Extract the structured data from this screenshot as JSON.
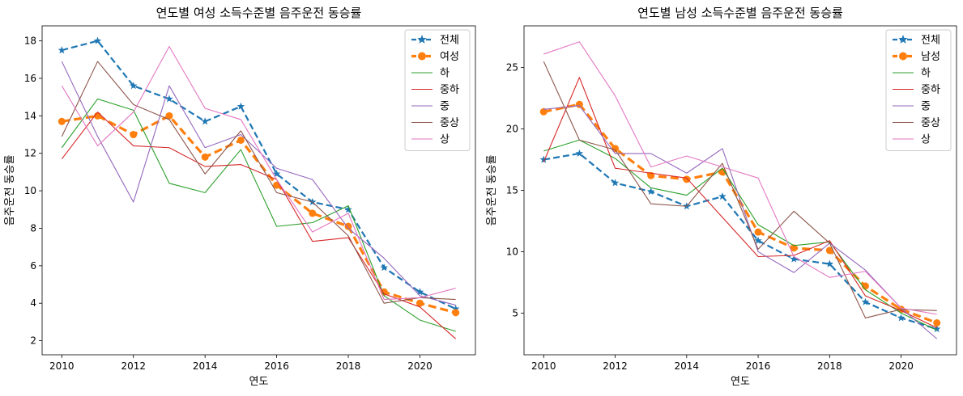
{
  "chart_data": [
    {
      "type": "line",
      "title": "연도별 여성 소득수준별 음주운전 동승률",
      "xlabel": "연도",
      "ylabel": "음주운전 동승률",
      "x": [
        2010,
        2011,
        2012,
        2013,
        2014,
        2015,
        2016,
        2017,
        2018,
        2019,
        2020,
        2021
      ],
      "xlim": [
        2009.45,
        2021.55
      ],
      "ylim": [
        1.25,
        18.8
      ],
      "xticks": [
        2010,
        2012,
        2014,
        2016,
        2018,
        2020
      ],
      "yticks": [
        2,
        4,
        6,
        8,
        10,
        12,
        14,
        16,
        18
      ],
      "grid": false,
      "legend_position": "upper right",
      "series": [
        {
          "name": "전체",
          "color": "#1f77b4",
          "style": "dashed",
          "marker": "star",
          "width": 2.2,
          "values": [
            17.5,
            18.0,
            15.6,
            14.9,
            13.7,
            14.5,
            10.9,
            9.4,
            9.0,
            5.9,
            4.6,
            3.7
          ]
        },
        {
          "name": "여성",
          "color": "#ff7f0e",
          "style": "dashed",
          "marker": "circle",
          "width": 3.2,
          "values": [
            13.7,
            14.0,
            13.0,
            14.0,
            11.8,
            12.7,
            10.3,
            8.8,
            8.1,
            4.6,
            4.0,
            3.5
          ]
        },
        {
          "name": "하",
          "color": "#2ca02c",
          "style": "solid",
          "marker": "none",
          "width": 1.1,
          "values": [
            12.3,
            14.9,
            14.3,
            10.4,
            9.9,
            12.2,
            8.1,
            8.3,
            9.2,
            4.4,
            3.1,
            2.5
          ]
        },
        {
          "name": "중하",
          "color": "#d62728",
          "style": "solid",
          "marker": "none",
          "width": 1.1,
          "values": [
            11.7,
            14.2,
            12.4,
            12.3,
            11.3,
            11.4,
            10.6,
            7.3,
            7.5,
            4.5,
            3.8,
            2.1
          ]
        },
        {
          "name": "중",
          "color": "#9467bd",
          "style": "solid",
          "marker": "none",
          "width": 1.1,
          "values": [
            16.9,
            12.9,
            9.4,
            15.6,
            12.3,
            13.0,
            11.2,
            10.6,
            8.0,
            6.4,
            4.4,
            3.9
          ]
        },
        {
          "name": "중상",
          "color": "#8c564b",
          "style": "solid",
          "marker": "none",
          "width": 1.1,
          "values": [
            12.9,
            16.9,
            14.6,
            13.8,
            10.9,
            13.2,
            9.9,
            9.4,
            7.6,
            4.0,
            4.3,
            4.2
          ]
        },
        {
          "name": "상",
          "color": "#e377c2",
          "style": "solid",
          "marker": "none",
          "width": 1.1,
          "values": [
            15.6,
            12.4,
            14.2,
            17.7,
            14.4,
            13.8,
            10.6,
            7.8,
            8.8,
            4.2,
            4.3,
            4.8
          ]
        }
      ]
    },
    {
      "type": "line",
      "title": "연도별 남성 소득수준별 음주운전 동승률",
      "xlabel": "연도",
      "ylabel": "음주운전 동승률",
      "x": [
        2010,
        2011,
        2012,
        2013,
        2014,
        2015,
        2016,
        2017,
        2018,
        2019,
        2020,
        2021
      ],
      "xlim": [
        2009.45,
        2021.55
      ],
      "ylim": [
        1.6,
        28.4
      ],
      "xticks": [
        2010,
        2012,
        2014,
        2016,
        2018,
        2020
      ],
      "yticks": [
        5,
        10,
        15,
        20,
        25
      ],
      "grid": false,
      "legend_position": "upper right",
      "series": [
        {
          "name": "전체",
          "color": "#1f77b4",
          "style": "dashed",
          "marker": "star",
          "width": 2.2,
          "values": [
            17.5,
            18.0,
            15.6,
            14.9,
            13.7,
            14.5,
            10.9,
            9.4,
            9.0,
            5.9,
            4.6,
            3.7
          ]
        },
        {
          "name": "남성",
          "color": "#ff7f0e",
          "style": "dashed",
          "marker": "circle",
          "width": 3.2,
          "values": [
            21.4,
            22.0,
            18.4,
            16.2,
            15.9,
            16.5,
            11.6,
            10.3,
            10.1,
            7.2,
            5.3,
            4.2
          ]
        },
        {
          "name": "하",
          "color": "#2ca02c",
          "style": "solid",
          "marker": "none",
          "width": 1.1,
          "values": [
            18.2,
            19.1,
            17.6,
            15.2,
            14.6,
            16.8,
            12.2,
            10.5,
            10.8,
            6.9,
            5.0,
            3.6
          ]
        },
        {
          "name": "중하",
          "color": "#d62728",
          "style": "solid",
          "marker": "none",
          "width": 1.1,
          "values": [
            17.3,
            24.2,
            16.8,
            16.4,
            16.0,
            12.8,
            9.6,
            9.7,
            10.9,
            6.4,
            5.2,
            3.8
          ]
        },
        {
          "name": "중",
          "color": "#9467bd",
          "style": "solid",
          "marker": "none",
          "width": 1.1,
          "values": [
            21.6,
            21.9,
            18.0,
            18.0,
            16.4,
            18.4,
            10.0,
            8.3,
            10.7,
            8.5,
            5.4,
            2.9
          ]
        },
        {
          "name": "중상",
          "color": "#8c564b",
          "style": "solid",
          "marker": "none",
          "width": 1.1,
          "values": [
            25.5,
            19.1,
            18.3,
            13.9,
            13.7,
            17.2,
            10.2,
            13.3,
            10.7,
            4.6,
            5.3,
            5.2
          ]
        },
        {
          "name": "상",
          "color": "#e377c2",
          "style": "solid",
          "marker": "none",
          "width": 1.1,
          "values": [
            26.1,
            27.1,
            22.7,
            16.9,
            17.8,
            16.9,
            16.0,
            9.6,
            7.9,
            8.4,
            5.4,
            4.9
          ]
        }
      ]
    }
  ]
}
